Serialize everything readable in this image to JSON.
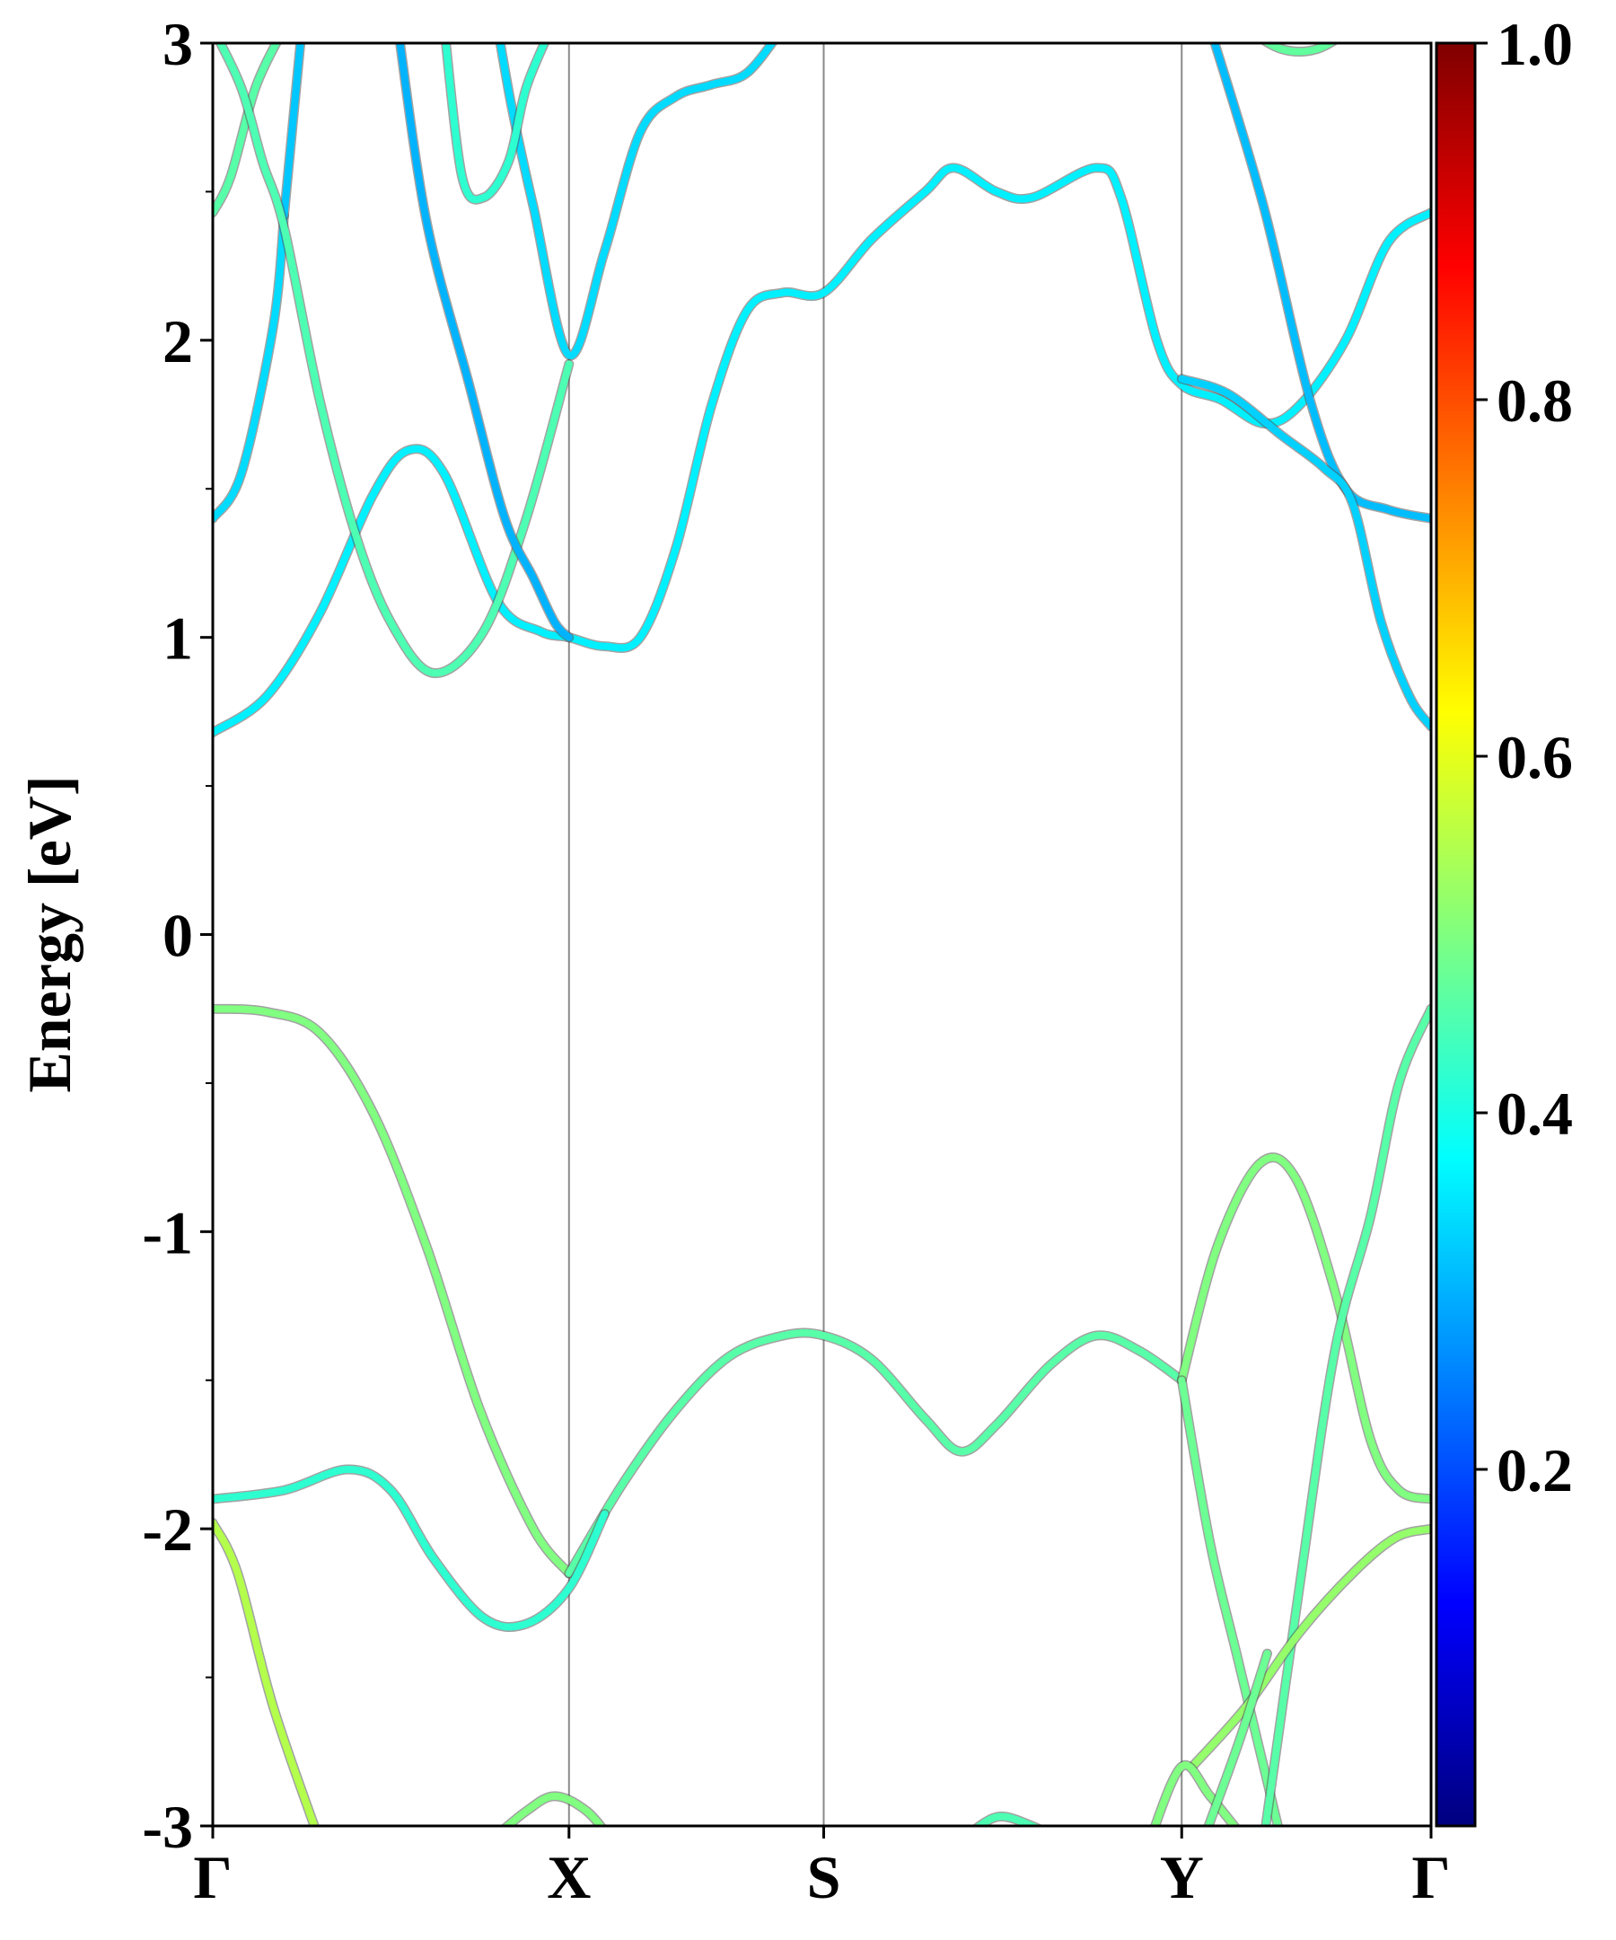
{
  "chart_data": {
    "type": "line",
    "title": "",
    "xlabel": "",
    "ylabel": "Energy [eV]",
    "ylim": [
      -3,
      3
    ],
    "yticks": [
      -3,
      -2,
      -1,
      0,
      1,
      2,
      3
    ],
    "k_points": [
      {
        "label": "Γ",
        "x": 0
      },
      {
        "label": "X",
        "x": 1
      },
      {
        "label": "S",
        "x": 1.715
      },
      {
        "label": "Y",
        "x": 2.72
      },
      {
        "label": "Γ",
        "x": 3.42
      }
    ],
    "colorbar": {
      "colormap": "jet",
      "range": [
        0,
        1
      ],
      "ticks": [
        0.2,
        0.4,
        0.6,
        0.8,
        1.0
      ],
      "tick_labels": [
        "0.2",
        "0.4",
        "0.6",
        "0.8",
        "1.0"
      ]
    },
    "series": [
      {
        "weight": 0.5,
        "points": [
          [
            0,
            -0.25
          ],
          [
            0.15,
            -0.26
          ],
          [
            0.3,
            -0.33
          ],
          [
            0.45,
            -0.6
          ],
          [
            0.6,
            -1.05
          ],
          [
            0.75,
            -1.6
          ],
          [
            0.9,
            -2.0
          ],
          [
            1.0,
            -2.15
          ]
        ]
      },
      {
        "weight": 0.46,
        "points": [
          [
            1.0,
            -2.15
          ],
          [
            1.15,
            -1.85
          ],
          [
            1.3,
            -1.6
          ],
          [
            1.45,
            -1.42
          ],
          [
            1.6,
            -1.35
          ],
          [
            1.715,
            -1.35
          ],
          [
            1.85,
            -1.43
          ],
          [
            2.0,
            -1.63
          ],
          [
            2.1,
            -1.74
          ],
          [
            2.2,
            -1.65
          ],
          [
            2.35,
            -1.45
          ],
          [
            2.48,
            -1.35
          ],
          [
            2.6,
            -1.4
          ],
          [
            2.72,
            -1.5
          ]
        ]
      },
      {
        "weight": 0.5,
        "points": [
          [
            2.72,
            -1.5
          ],
          [
            2.82,
            -1.05
          ],
          [
            2.94,
            -0.77
          ],
          [
            3.04,
            -0.82
          ],
          [
            3.15,
            -1.2
          ],
          [
            3.25,
            -1.7
          ],
          [
            3.33,
            -1.87
          ],
          [
            3.42,
            -1.9
          ]
        ]
      },
      {
        "weight": 0.48,
        "points": [
          [
            2.72,
            -1.5
          ],
          [
            2.8,
            -2.05
          ],
          [
            2.88,
            -2.45
          ],
          [
            3.0,
            -3.05
          ]
        ]
      },
      {
        "weight": 0.46,
        "points": [
          [
            2.95,
            -3.05
          ],
          [
            3.05,
            -2.2
          ],
          [
            3.15,
            -1.4
          ],
          [
            3.25,
            -0.95
          ],
          [
            3.33,
            -0.5
          ],
          [
            3.42,
            -0.25
          ]
        ]
      },
      {
        "weight": 0.42,
        "points": [
          [
            0,
            -1.9
          ],
          [
            0.2,
            -1.87
          ],
          [
            0.38,
            -1.8
          ],
          [
            0.5,
            -1.87
          ],
          [
            0.62,
            -2.1
          ],
          [
            0.76,
            -2.3
          ],
          [
            0.88,
            -2.32
          ],
          [
            1.0,
            -2.2
          ],
          [
            1.1,
            -1.95
          ]
        ]
      },
      {
        "weight": 0.55,
        "points": [
          [
            0,
            -1.98
          ],
          [
            0.07,
            -2.15
          ],
          [
            0.17,
            -2.6
          ],
          [
            0.3,
            -3.05
          ]
        ]
      },
      {
        "weight": 0.52,
        "points": [
          [
            2.75,
            -2.8
          ],
          [
            2.9,
            -2.6
          ],
          [
            3.05,
            -2.35
          ],
          [
            3.2,
            -2.15
          ],
          [
            3.32,
            -2.03
          ],
          [
            3.42,
            -2.0
          ]
        ]
      },
      {
        "weight": 0.5,
        "points": [
          [
            0.78,
            -3.05
          ],
          [
            0.88,
            -2.95
          ],
          [
            0.96,
            -2.9
          ],
          [
            1.05,
            -2.95
          ],
          [
            1.12,
            -3.05
          ]
        ]
      },
      {
        "weight": 0.45,
        "points": [
          [
            2.1,
            -3.05
          ],
          [
            2.2,
            -2.97
          ],
          [
            2.3,
            -3.0
          ],
          [
            2.38,
            -3.05
          ]
        ]
      },
      {
        "weight": 0.5,
        "points": [
          [
            2.63,
            -3.05
          ],
          [
            2.72,
            -2.8
          ],
          [
            2.8,
            -2.9
          ],
          [
            2.9,
            -3.05
          ]
        ]
      },
      {
        "weight": 0.48,
        "points": [
          [
            2.78,
            -3.05
          ],
          [
            2.88,
            -2.72
          ],
          [
            2.96,
            -2.42
          ]
        ]
      },
      {
        "weight": 0.36,
        "points": [
          [
            0,
            0.68
          ],
          [
            0.15,
            0.8
          ],
          [
            0.3,
            1.08
          ],
          [
            0.45,
            1.48
          ],
          [
            0.55,
            1.63
          ],
          [
            0.65,
            1.55
          ],
          [
            0.8,
            1.12
          ],
          [
            0.92,
            1.02
          ],
          [
            1.0,
            1.0
          ],
          [
            1.1,
            0.97
          ],
          [
            1.2,
            1.0
          ],
          [
            1.3,
            1.3
          ],
          [
            1.4,
            1.78
          ],
          [
            1.5,
            2.1
          ],
          [
            1.6,
            2.16
          ],
          [
            1.715,
            2.16
          ],
          [
            1.85,
            2.34
          ],
          [
            2.0,
            2.5
          ],
          [
            2.08,
            2.58
          ],
          [
            2.2,
            2.5
          ],
          [
            2.3,
            2.48
          ],
          [
            2.48,
            2.58
          ],
          [
            2.55,
            2.48
          ],
          [
            2.65,
            2.0
          ],
          [
            2.72,
            1.85
          ],
          [
            2.83,
            1.8
          ],
          [
            2.95,
            1.72
          ],
          [
            3.05,
            1.78
          ],
          [
            3.18,
            2.0
          ],
          [
            3.3,
            2.33
          ],
          [
            3.42,
            2.43
          ]
        ]
      },
      {
        "weight": 0.34,
        "points": [
          [
            0,
            1.4
          ],
          [
            0.08,
            1.55
          ],
          [
            0.17,
            2.05
          ],
          [
            0.2,
            2.42
          ]
        ]
      },
      {
        "weight": 0.32,
        "points": [
          [
            0.2,
            2.42
          ],
          [
            0.25,
            3.05
          ]
        ]
      },
      {
        "weight": 0.46,
        "points": [
          [
            0,
            2.43
          ],
          [
            0.05,
            2.55
          ],
          [
            0.12,
            2.85
          ],
          [
            0.2,
            3.05
          ]
        ]
      },
      {
        "weight": 0.45,
        "points": [
          [
            0,
            3.05
          ],
          [
            0.08,
            2.85
          ],
          [
            0.14,
            2.6
          ],
          [
            0.2,
            2.38
          ],
          [
            0.3,
            1.8
          ],
          [
            0.4,
            1.35
          ],
          [
            0.5,
            1.05
          ],
          [
            0.62,
            0.88
          ],
          [
            0.76,
            1.02
          ],
          [
            0.88,
            1.4
          ],
          [
            1.0,
            1.92
          ]
        ]
      },
      {
        "weight": 0.3,
        "points": [
          [
            0.52,
            3.05
          ],
          [
            0.6,
            2.4
          ],
          [
            0.72,
            1.85
          ],
          [
            0.82,
            1.4
          ],
          [
            0.9,
            1.2
          ],
          [
            0.96,
            1.05
          ],
          [
            1.0,
            1.0
          ]
        ]
      },
      {
        "weight": 0.34,
        "points": [
          [
            0.8,
            3.05
          ],
          [
            0.84,
            2.78
          ],
          [
            0.9,
            2.45
          ],
          [
            1.0,
            1.95
          ],
          [
            1.1,
            2.3
          ],
          [
            1.2,
            2.7
          ],
          [
            1.3,
            2.82
          ],
          [
            1.4,
            2.86
          ],
          [
            1.5,
            2.9
          ],
          [
            1.6,
            3.05
          ]
        ]
      },
      {
        "weight": 0.42,
        "points": [
          [
            0.65,
            3.05
          ],
          [
            0.7,
            2.55
          ],
          [
            0.76,
            2.48
          ],
          [
            0.83,
            2.6
          ],
          [
            0.88,
            2.85
          ],
          [
            0.95,
            3.05
          ]
        ]
      },
      {
        "weight": 0.31,
        "points": [
          [
            2.8,
            3.05
          ],
          [
            2.95,
            2.45
          ],
          [
            3.08,
            1.8
          ],
          [
            3.18,
            1.5
          ],
          [
            3.3,
            1.43
          ],
          [
            3.42,
            1.4
          ]
        ]
      },
      {
        "weight": 0.33,
        "points": [
          [
            2.72,
            1.87
          ],
          [
            2.85,
            1.82
          ],
          [
            3.0,
            1.68
          ],
          [
            3.12,
            1.57
          ],
          [
            3.2,
            1.45
          ],
          [
            3.28,
            1.05
          ],
          [
            3.36,
            0.8
          ],
          [
            3.42,
            0.7
          ]
        ]
      },
      {
        "weight": 0.47,
        "points": [
          [
            2.9,
            3.05
          ],
          [
            3.0,
            2.98
          ],
          [
            3.1,
            2.98
          ],
          [
            3.2,
            3.05
          ]
        ]
      }
    ]
  }
}
